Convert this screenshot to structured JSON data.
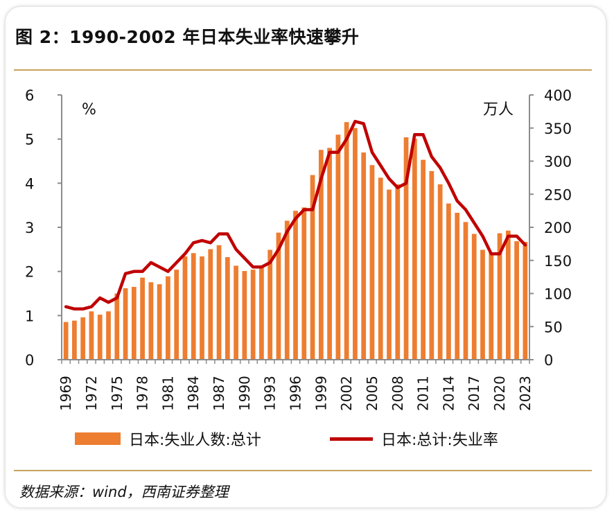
{
  "figure": {
    "title": "图 2：1990-2002 年日本失业率快速攀升",
    "source": "数据来源：wind，西南证券整理"
  },
  "chart_data": {
    "type": "bar+line",
    "left_unit": "%",
    "right_unit": "万人",
    "left_axis": {
      "min": 0,
      "max": 6,
      "ticks": [
        "0",
        "1",
        "2",
        "3",
        "4",
        "5",
        "6"
      ]
    },
    "right_axis": {
      "min": 0,
      "max": 400,
      "ticks": [
        "0",
        "50",
        "100",
        "150",
        "200",
        "250",
        "300",
        "350",
        "400"
      ]
    },
    "x_tick_labels": [
      "1969",
      "1972",
      "1975",
      "1978",
      "1981",
      "1984",
      "1987",
      "1990",
      "1993",
      "1996",
      "1999",
      "2002",
      "2005",
      "2008",
      "2011",
      "2014",
      "2017",
      "2020",
      "2023"
    ],
    "x": [
      1969,
      1970,
      1971,
      1972,
      1973,
      1974,
      1975,
      1976,
      1977,
      1978,
      1979,
      1980,
      1981,
      1982,
      1983,
      1984,
      1985,
      1986,
      1987,
      1988,
      1989,
      1990,
      1991,
      1992,
      1993,
      1994,
      1995,
      1996,
      1997,
      1998,
      1999,
      2000,
      2001,
      2002,
      2003,
      2004,
      2005,
      2006,
      2007,
      2008,
      2009,
      2010,
      2011,
      2012,
      2013,
      2014,
      2015,
      2016,
      2017,
      2018,
      2019,
      2020,
      2021,
      2022,
      2023
    ],
    "series": [
      {
        "name": "日本:失业人数:总计",
        "type": "bar",
        "axis": "right",
        "color": "#ED7D31",
        "values": [
          57,
          59,
          64,
          73,
          68,
          73,
          100,
          108,
          110,
          124,
          117,
          114,
          126,
          136,
          156,
          161,
          156,
          167,
          173,
          155,
          142,
          134,
          136,
          142,
          166,
          192,
          210,
          225,
          230,
          279,
          317,
          320,
          340,
          359,
          350,
          313,
          294,
          275,
          257,
          265,
          336,
          334,
          302,
          285,
          265,
          236,
          222,
          208,
          190,
          166,
          162,
          191,
          195,
          179,
          178
        ]
      },
      {
        "name": "日本:总计:失业率",
        "type": "line",
        "axis": "left",
        "color": "#C00000",
        "values": [
          1.2,
          1.15,
          1.15,
          1.2,
          1.4,
          1.3,
          1.4,
          1.95,
          2.0,
          2.0,
          2.2,
          2.1,
          2.0,
          2.2,
          2.4,
          2.65,
          2.7,
          2.65,
          2.85,
          2.85,
          2.5,
          2.3,
          2.1,
          2.1,
          2.2,
          2.5,
          2.9,
          3.2,
          3.4,
          3.4,
          4.1,
          4.7,
          4.7,
          5.0,
          5.4,
          5.35,
          4.7,
          4.4,
          4.1,
          3.9,
          4.0,
          5.1,
          5.1,
          4.6,
          4.35,
          4.0,
          3.6,
          3.4,
          3.1,
          2.8,
          2.4,
          2.4,
          2.8,
          2.8,
          2.6
        ]
      }
    ],
    "legend_position": "bottom",
    "grid": false
  }
}
